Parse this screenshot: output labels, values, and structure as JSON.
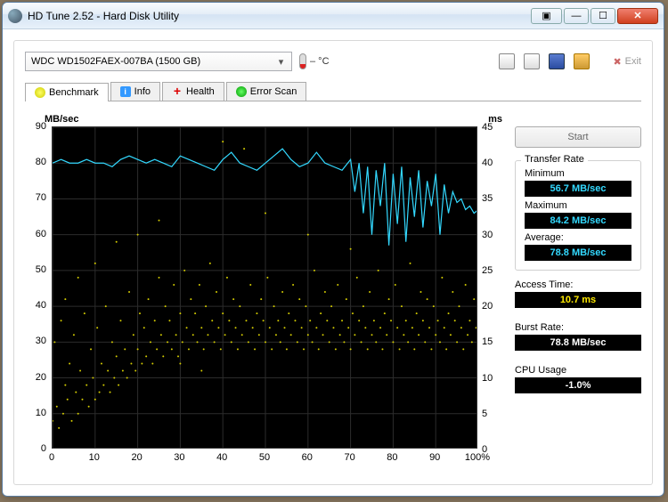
{
  "window": {
    "title": "HD Tune 2.52 - Hard Disk Utility"
  },
  "drive": {
    "selected": "WDC   WD1502FAEX-007BA (1500 GB)"
  },
  "temperature": "– °C",
  "exit_label": "Exit",
  "tabs": {
    "benchmark": "Benchmark",
    "info": "Info",
    "health": "Health",
    "error": "Error Scan"
  },
  "chart": {
    "y_left_label": "MB/sec",
    "y_right_label": "ms",
    "y_left_min": 0,
    "y_left_max": 90,
    "y_left_step": 10,
    "y_right_min": 0,
    "y_right_max": 45,
    "y_right_step": 5,
    "x_min": 0,
    "x_max": 100,
    "x_step": 10,
    "x_suffix": "%",
    "bg": "#000000",
    "grid": "#2c2c2c",
    "transfer_color": "#33d9ff",
    "access_color": "#d4cc00",
    "transfer_series": [
      [
        0,
        80
      ],
      [
        2,
        81
      ],
      [
        4,
        80
      ],
      [
        6,
        80
      ],
      [
        8,
        81
      ],
      [
        10,
        80
      ],
      [
        12,
        80
      ],
      [
        14,
        79
      ],
      [
        16,
        81
      ],
      [
        18,
        82
      ],
      [
        20,
        81
      ],
      [
        22,
        80
      ],
      [
        24,
        81
      ],
      [
        26,
        80
      ],
      [
        28,
        79
      ],
      [
        30,
        82
      ],
      [
        32,
        81
      ],
      [
        34,
        80
      ],
      [
        36,
        79
      ],
      [
        38,
        78
      ],
      [
        40,
        81
      ],
      [
        42,
        83
      ],
      [
        44,
        80
      ],
      [
        46,
        79
      ],
      [
        48,
        78
      ],
      [
        50,
        80
      ],
      [
        52,
        82
      ],
      [
        54,
        84
      ],
      [
        56,
        81
      ],
      [
        58,
        79
      ],
      [
        60,
        80
      ],
      [
        62,
        83
      ],
      [
        64,
        80
      ],
      [
        66,
        79
      ],
      [
        68,
        78
      ],
      [
        70,
        81
      ],
      [
        71,
        72
      ],
      [
        72,
        80
      ],
      [
        73,
        66
      ],
      [
        74,
        79
      ],
      [
        75,
        60
      ],
      [
        76,
        78
      ],
      [
        77,
        68
      ],
      [
        78,
        80
      ],
      [
        79,
        57
      ],
      [
        80,
        77
      ],
      [
        81,
        63
      ],
      [
        82,
        79
      ],
      [
        83,
        58
      ],
      [
        84,
        76
      ],
      [
        85,
        65
      ],
      [
        86,
        78
      ],
      [
        87,
        62
      ],
      [
        88,
        75
      ],
      [
        89,
        68
      ],
      [
        90,
        77
      ],
      [
        91,
        60
      ],
      [
        92,
        74
      ],
      [
        93,
        66
      ],
      [
        94,
        72
      ],
      [
        95,
        69
      ],
      [
        96,
        70
      ],
      [
        97,
        67
      ],
      [
        98,
        68
      ],
      [
        99,
        66
      ],
      [
        100,
        67
      ]
    ],
    "access_points": [
      [
        0,
        4
      ],
      [
        0.5,
        15
      ],
      [
        1,
        6
      ],
      [
        1.5,
        3
      ],
      [
        2,
        18
      ],
      [
        2.5,
        5
      ],
      [
        3,
        9
      ],
      [
        3,
        21
      ],
      [
        3.5,
        7
      ],
      [
        4,
        12
      ],
      [
        4.5,
        4
      ],
      [
        5,
        16
      ],
      [
        5.5,
        8
      ],
      [
        6,
        5
      ],
      [
        6,
        24
      ],
      [
        6.5,
        11
      ],
      [
        7,
        7
      ],
      [
        7.5,
        19
      ],
      [
        8,
        9
      ],
      [
        8.5,
        6
      ],
      [
        9,
        14
      ],
      [
        9.5,
        10
      ],
      [
        10,
        7
      ],
      [
        10,
        26
      ],
      [
        10.5,
        17
      ],
      [
        11,
        8
      ],
      [
        11.5,
        12
      ],
      [
        12,
        9
      ],
      [
        12.5,
        20
      ],
      [
        13,
        11
      ],
      [
        13.5,
        8
      ],
      [
        14,
        15
      ],
      [
        14.5,
        10
      ],
      [
        15,
        13
      ],
      [
        15,
        29
      ],
      [
        15.5,
        9
      ],
      [
        16,
        18
      ],
      [
        16.5,
        11
      ],
      [
        17,
        14
      ],
      [
        17.5,
        10
      ],
      [
        18,
        22
      ],
      [
        18.5,
        12
      ],
      [
        19,
        16
      ],
      [
        19.5,
        11
      ],
      [
        20,
        14
      ],
      [
        20,
        30
      ],
      [
        20.5,
        19
      ],
      [
        21,
        12
      ],
      [
        21.5,
        17
      ],
      [
        22,
        13
      ],
      [
        22.5,
        21
      ],
      [
        23,
        15
      ],
      [
        23.5,
        12
      ],
      [
        24,
        18
      ],
      [
        24.5,
        14
      ],
      [
        25,
        24
      ],
      [
        25,
        32
      ],
      [
        25.5,
        16
      ],
      [
        26,
        13
      ],
      [
        26.5,
        20
      ],
      [
        27,
        15
      ],
      [
        27.5,
        18
      ],
      [
        28,
        14
      ],
      [
        28.5,
        23
      ],
      [
        29,
        16
      ],
      [
        29.5,
        13
      ],
      [
        30,
        19
      ],
      [
        30,
        12
      ],
      [
        30.5,
        15
      ],
      [
        31,
        25
      ],
      [
        31.5,
        17
      ],
      [
        32,
        14
      ],
      [
        32.5,
        21
      ],
      [
        33,
        16
      ],
      [
        33.5,
        19
      ],
      [
        34,
        15
      ],
      [
        34.5,
        23
      ],
      [
        35,
        17
      ],
      [
        35,
        11
      ],
      [
        35.5,
        14
      ],
      [
        36,
        20
      ],
      [
        36.5,
        16
      ],
      [
        37,
        26
      ],
      [
        37.5,
        18
      ],
      [
        38,
        15
      ],
      [
        38.5,
        22
      ],
      [
        39,
        17
      ],
      [
        39.5,
        14
      ],
      [
        40,
        19
      ],
      [
        40,
        43
      ],
      [
        40.5,
        16
      ],
      [
        41,
        24
      ],
      [
        41.5,
        18
      ],
      [
        42,
        15
      ],
      [
        42.5,
        21
      ],
      [
        43,
        17
      ],
      [
        43.5,
        14
      ],
      [
        44,
        20
      ],
      [
        44.5,
        16
      ],
      [
        45,
        42
      ],
      [
        45.5,
        18
      ],
      [
        46,
        15
      ],
      [
        46.5,
        23
      ],
      [
        47,
        17
      ],
      [
        47.5,
        14
      ],
      [
        48,
        19
      ],
      [
        48.5,
        16
      ],
      [
        49,
        21
      ],
      [
        49.5,
        18
      ],
      [
        50,
        15
      ],
      [
        50,
        33
      ],
      [
        50.5,
        24
      ],
      [
        51,
        17
      ],
      [
        51.5,
        14
      ],
      [
        52,
        20
      ],
      [
        52.5,
        16
      ],
      [
        53,
        18
      ],
      [
        53.5,
        15
      ],
      [
        54,
        22
      ],
      [
        54.5,
        17
      ],
      [
        55,
        14
      ],
      [
        55.5,
        19
      ],
      [
        56,
        16
      ],
      [
        56.5,
        23
      ],
      [
        57,
        18
      ],
      [
        57.5,
        15
      ],
      [
        58,
        21
      ],
      [
        58.5,
        17
      ],
      [
        59,
        14
      ],
      [
        59.5,
        20
      ],
      [
        60,
        16
      ],
      [
        60,
        30
      ],
      [
        60.5,
        18
      ],
      [
        61,
        15
      ],
      [
        61.5,
        25
      ],
      [
        62,
        17
      ],
      [
        62.5,
        14
      ],
      [
        63,
        19
      ],
      [
        63.5,
        16
      ],
      [
        64,
        22
      ],
      [
        64.5,
        18
      ],
      [
        65,
        15
      ],
      [
        65.5,
        20
      ],
      [
        66,
        17
      ],
      [
        66.5,
        14
      ],
      [
        67,
        23
      ],
      [
        67.5,
        16
      ],
      [
        68,
        18
      ],
      [
        68.5,
        15
      ],
      [
        69,
        21
      ],
      [
        69.5,
        17
      ],
      [
        70,
        14
      ],
      [
        70,
        28
      ],
      [
        70.5,
        19
      ],
      [
        71,
        16
      ],
      [
        71.5,
        24
      ],
      [
        72,
        18
      ],
      [
        72.5,
        15
      ],
      [
        73,
        20
      ],
      [
        73.5,
        17
      ],
      [
        74,
        14
      ],
      [
        74.5,
        22
      ],
      [
        75,
        16
      ],
      [
        75.5,
        18
      ],
      [
        76,
        15
      ],
      [
        76.5,
        25
      ],
      [
        77,
        17
      ],
      [
        77.5,
        14
      ],
      [
        78,
        19
      ],
      [
        78.5,
        16
      ],
      [
        79,
        21
      ],
      [
        79.5,
        18
      ],
      [
        80,
        15
      ],
      [
        80.5,
        23
      ],
      [
        81,
        17
      ],
      [
        81.5,
        14
      ],
      [
        82,
        20
      ],
      [
        82.5,
        16
      ],
      [
        83,
        18
      ],
      [
        83.5,
        15
      ],
      [
        84,
        26
      ],
      [
        84.5,
        17
      ],
      [
        85,
        14
      ],
      [
        85.5,
        19
      ],
      [
        86,
        16
      ],
      [
        86.5,
        22
      ],
      [
        87,
        18
      ],
      [
        87.5,
        15
      ],
      [
        88,
        21
      ],
      [
        88.5,
        17
      ],
      [
        89,
        14
      ],
      [
        89.5,
        20
      ],
      [
        90,
        16
      ],
      [
        90.5,
        18
      ],
      [
        91,
        15
      ],
      [
        91.5,
        24
      ],
      [
        92,
        17
      ],
      [
        92.5,
        14
      ],
      [
        93,
        19
      ],
      [
        93.5,
        16
      ],
      [
        94,
        22
      ],
      [
        94.5,
        18
      ],
      [
        95,
        15
      ],
      [
        95.5,
        20
      ],
      [
        96,
        17
      ],
      [
        96.5,
        14
      ],
      [
        97,
        23
      ],
      [
        97.5,
        16
      ],
      [
        98,
        18
      ],
      [
        98.5,
        15
      ],
      [
        99,
        21
      ],
      [
        99.5,
        17
      ],
      [
        100,
        14
      ]
    ]
  },
  "start_label": "Start",
  "stats": {
    "transfer_title": "Transfer Rate",
    "min_label": "Minimum",
    "min_value": "56.7 MB/sec",
    "max_label": "Maximum",
    "max_value": "84.2 MB/sec",
    "avg_label": "Average:",
    "avg_value": "78.8 MB/sec",
    "access_label": "Access Time:",
    "access_value": "10.7 ms",
    "burst_label": "Burst Rate:",
    "burst_value": "78.8 MB/sec",
    "cpu_label": "CPU Usage",
    "cpu_value": "-1.0%"
  }
}
